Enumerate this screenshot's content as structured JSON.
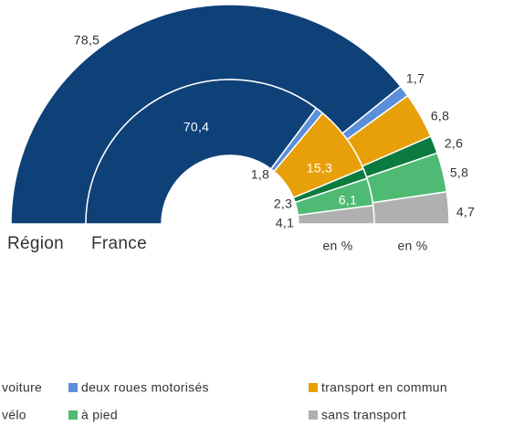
{
  "chart_data": {
    "type": "pie",
    "categories": [
      "voiture",
      "deux roues motorisés",
      "transport en commun",
      "vélo",
      "à pied",
      "sans transport"
    ],
    "colors": [
      "#0e4178",
      "#5b8fd9",
      "#e8a00a",
      "#0b7a3e",
      "#4fba74",
      "#b0b0b0"
    ],
    "unit": "en %",
    "series": [
      {
        "name": "Région",
        "values": [
          78.5,
          1.7,
          6.8,
          2.6,
          5.8,
          4.7
        ],
        "value_labels": [
          "78,5",
          "1,7",
          "6,8",
          "2,6",
          "5,8",
          "4,7"
        ]
      },
      {
        "name": "France",
        "values": [
          70.4,
          1.8,
          15.3,
          2.3,
          6.1,
          4.1
        ],
        "value_labels": [
          "70,4",
          "1,8",
          "15,3",
          "2,3",
          "6,1",
          "4,1"
        ]
      }
    ]
  }
}
